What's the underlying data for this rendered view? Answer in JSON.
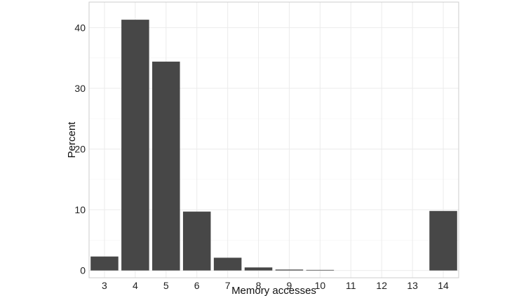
{
  "chart_data": {
    "type": "bar",
    "categories": [
      "3",
      "4",
      "5",
      "6",
      "7",
      "8",
      "9",
      "10",
      "11",
      "12",
      "13",
      "14"
    ],
    "values": [
      2.3,
      41.3,
      34.4,
      9.7,
      2.1,
      0.5,
      0.15,
      0.05,
      0.0,
      0.0,
      0.0,
      9.8
    ],
    "xlabel": "Memory accesses",
    "ylabel": "Percent",
    "yticks": [
      "0",
      "10",
      "20",
      "30",
      "40"
    ],
    "ylim": [
      -1.2,
      44.2
    ],
    "grid": true,
    "bar_color": "#474747",
    "grid_color": "#ebebeb",
    "border_color": "#cccccc"
  }
}
